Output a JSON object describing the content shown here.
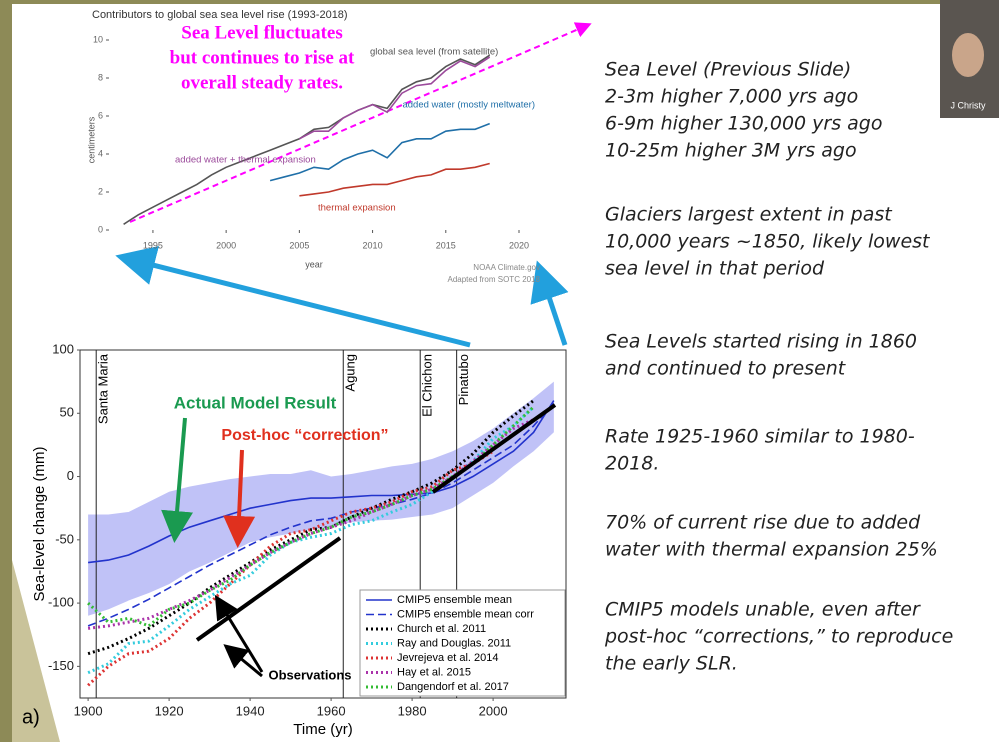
{
  "chart_data": [
    {
      "type": "line",
      "title": "Contributors to global sea sea level rise (1993-2018)",
      "y_label": "centimeters",
      "x_label": "year",
      "credits": [
        "NOAA Climate.gov",
        "Adapted from SOTC 2018"
      ],
      "annotation": [
        "Sea Level fluctuates",
        "but continues to rise at",
        "overall steady rates."
      ],
      "annotation_color": "#ff00ff",
      "x": [
        1993,
        1994,
        1995,
        1996,
        1997,
        1998,
        1999,
        2000,
        2001,
        2002,
        2003,
        2004,
        2005,
        2006,
        2007,
        2008,
        2009,
        2010,
        2011,
        2012,
        2013,
        2014,
        2015,
        2016,
        2017,
        2018
      ],
      "xlim": [
        1992,
        2020
      ],
      "xticks": [
        1995,
        2000,
        2005,
        2010,
        2015,
        2020
      ],
      "ylim": [
        0,
        10
      ],
      "yticks": [
        0,
        2,
        4,
        6,
        8,
        10
      ],
      "series": [
        {
          "name": "global sea level (from satellite)",
          "color": "#555555",
          "dash": "solid",
          "values": [
            0.3,
            0.8,
            1.2,
            1.6,
            2.0,
            2.4,
            2.9,
            3.3,
            3.6,
            3.9,
            4.2,
            4.5,
            4.8,
            5.3,
            5.4,
            5.9,
            6.3,
            6.6,
            6.4,
            7.4,
            7.8,
            8.0,
            8.6,
            9.0,
            8.7,
            9.2
          ]
        },
        {
          "name": "added water + thermal expansion",
          "color": "#9b4a9b",
          "dash": "solid",
          "values": [
            null,
            null,
            null,
            null,
            null,
            null,
            null,
            null,
            null,
            null,
            null,
            null,
            4.8,
            5.2,
            5.2,
            5.9,
            6.3,
            6.6,
            6.2,
            7.2,
            7.6,
            7.7,
            8.4,
            8.9,
            8.6,
            9.1
          ]
        },
        {
          "name": "added water (mostly meltwater)",
          "color": "#1f6fa8",
          "dash": "solid",
          "values": [
            null,
            null,
            null,
            null,
            null,
            null,
            null,
            null,
            null,
            null,
            2.6,
            2.8,
            3.0,
            3.3,
            3.2,
            3.7,
            4.0,
            4.2,
            3.8,
            4.6,
            4.8,
            4.8,
            5.2,
            5.3,
            5.3,
            5.6
          ]
        },
        {
          "name": "thermal expansion",
          "color": "#c0392b",
          "dash": "solid",
          "values": [
            null,
            null,
            null,
            null,
            null,
            null,
            null,
            null,
            null,
            null,
            null,
            null,
            1.8,
            1.9,
            2.0,
            2.2,
            2.3,
            2.4,
            2.4,
            2.6,
            2.8,
            2.9,
            3.2,
            3.2,
            3.3,
            3.5
          ]
        }
      ]
    },
    {
      "type": "line",
      "panel_label": "a)",
      "y_label": "Sea-level change (mm)",
      "x_label": "Time (yr)",
      "annotations": [
        "Actual Model Result",
        "Post-hoc “correction”",
        "Observations"
      ],
      "annotation_colors": [
        "#1a9a50",
        "#e0301e",
        "#000000"
      ],
      "events": [
        {
          "label": "Santa Maria",
          "x": 1902
        },
        {
          "label": "Agung",
          "x": 1963
        },
        {
          "label": "El Chichon",
          "x": 1982
        },
        {
          "label": "Pinatubo",
          "x": 1991
        }
      ],
      "x": [
        1900,
        1905,
        1910,
        1915,
        1920,
        1925,
        1930,
        1935,
        1940,
        1945,
        1950,
        1955,
        1960,
        1965,
        1970,
        1975,
        1980,
        1985,
        1990,
        1995,
        2000,
        2005,
        2010,
        2015
      ],
      "xlim": [
        1898,
        2018
      ],
      "xticks": [
        1900,
        1920,
        1940,
        1960,
        1980,
        2000
      ],
      "ylim": [
        -175,
        100
      ],
      "yticks": [
        -150,
        -100,
        -50,
        0,
        50,
        100
      ],
      "model_range": {
        "color": "#8c8ff0",
        "upper": [
          -30,
          -30,
          -28,
          -20,
          -12,
          -8,
          -5,
          -2,
          0,
          2,
          2,
          5,
          0,
          2,
          5,
          8,
          10,
          14,
          20,
          28,
          38,
          50,
          62,
          75
        ],
        "lower": [
          -110,
          -105,
          -98,
          -92,
          -85,
          -75,
          -68,
          -60,
          -52,
          -48,
          -45,
          -42,
          -40,
          -36,
          -35,
          -34,
          -32,
          -30,
          -25,
          -15,
          -5,
          8,
          20,
          35
        ]
      },
      "series": [
        {
          "name": "CMIP5 ensemble mean",
          "color": "#2233cc",
          "dash": "solid",
          "values": [
            -68,
            -66,
            -62,
            -55,
            -47,
            -40,
            -35,
            -30,
            -25,
            -22,
            -19,
            -17,
            -17,
            -16,
            -15,
            -15,
            -14,
            -13,
            -8,
            0,
            10,
            20,
            35,
            60
          ]
        },
        {
          "name": "CMIP5 ensemble mean corr",
          "color": "#2233cc",
          "dash": "dashed",
          "values": [
            -118,
            -112,
            -105,
            -97,
            -88,
            -79,
            -70,
            -62,
            -54,
            -46,
            -40,
            -35,
            -33,
            -28,
            -25,
            -22,
            -18,
            -13,
            -5,
            5,
            15,
            25,
            40,
            58
          ]
        },
        {
          "name": "Church et al. 2011",
          "color": "#000000",
          "dash": "dotted",
          "values": [
            -140,
            -135,
            -128,
            -120,
            -110,
            -100,
            -88,
            -78,
            -68,
            -58,
            -50,
            -42,
            -40,
            -32,
            -25,
            -18,
            -12,
            -5,
            5,
            18,
            35,
            48,
            60,
            null
          ]
        },
        {
          "name": "Ray and Douglas. 2011",
          "color": "#33ccdd",
          "dash": "dotted",
          "values": [
            -155,
            -148,
            -132,
            -130,
            -118,
            -105,
            -95,
            -85,
            -78,
            -62,
            -52,
            -48,
            -45,
            -38,
            -35,
            -28,
            -22,
            -12,
            -2,
            12,
            30,
            40,
            55,
            null
          ]
        },
        {
          "name": "Jevrejeva et al. 2014",
          "color": "#dd3333",
          "dash": "dotted",
          "values": [
            -165,
            -150,
            -140,
            -138,
            -128,
            -112,
            -100,
            -85,
            -70,
            -55,
            -45,
            -42,
            -35,
            -28,
            -25,
            -20,
            -12,
            -8,
            5,
            10,
            20,
            null,
            null,
            null
          ]
        },
        {
          "name": "Hay et al. 2015",
          "color": "#aa33aa",
          "dash": "dotted",
          "values": [
            -120,
            -118,
            -115,
            -112,
            -105,
            -98,
            -90,
            -80,
            -70,
            -60,
            -52,
            -45,
            -40,
            -35,
            -28,
            -22,
            -15,
            -10,
            0,
            12,
            25,
            38,
            45,
            null
          ]
        },
        {
          "name": "Dangendorf et al. 2017",
          "color": "#33bb33",
          "dash": "dotted",
          "values": [
            -100,
            -115,
            -112,
            -118,
            -105,
            -100,
            -90,
            -82,
            -70,
            -60,
            -52,
            -45,
            -40,
            -32,
            -28,
            -22,
            -15,
            -10,
            0,
            10,
            25,
            40,
            55,
            null
          ]
        }
      ]
    }
  ],
  "notes": [
    [
      "Sea Level (Previous Slide)",
      "2-3m higher 7,000 yrs ago",
      "6-9m higher 130,000 yrs ago",
      "10-25m higher 3M yrs ago"
    ],
    [
      "Glaciers largest extent in past",
      "10,000 years ~1850, likely lowest",
      "sea level in that period"
    ],
    [
      "Sea Levels started rising in 1860",
      "and continued to present"
    ],
    [
      "Rate 1925-1960 similar to 1980-",
      "2018."
    ],
    [
      "70% of current rise due to added",
      "water with thermal expansion 25%"
    ],
    [
      "CMIP5 models unable, even after",
      "post-hoc “corrections,” to reproduce",
      "the early SLR."
    ]
  ],
  "video_label": "J Christy"
}
